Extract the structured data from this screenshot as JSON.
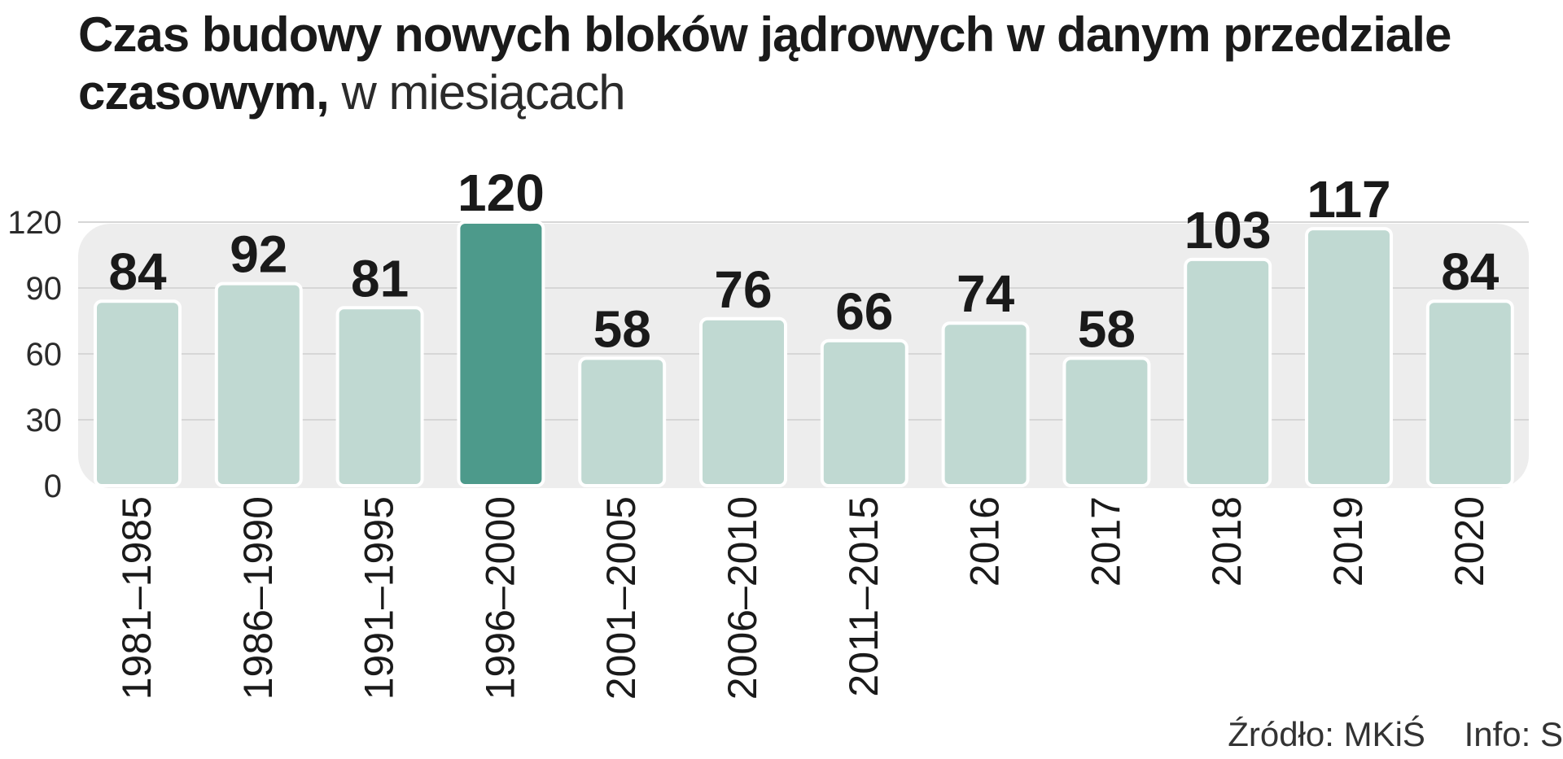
{
  "title": {
    "line1": "Czas budowy nowych bloków jądrowych w danym przedziale",
    "line2_bold": "czasowym,",
    "line2_light": "w miesiącach"
  },
  "footer": {
    "source": "Źródło: MKiŚ",
    "info": "Info: S"
  },
  "colors": {
    "bar": "#c0d9d2",
    "highlight": "#4d9a8b",
    "plot_bg": "#ededed",
    "text": "#1a1a1a"
  },
  "chart_data": {
    "type": "bar",
    "categories": [
      "1981–1985",
      "1986–1990",
      "1991–1995",
      "1996–2000",
      "2001–2005",
      "2006–2010",
      "2011–2015",
      "2016",
      "2017",
      "2018",
      "2019",
      "2020"
    ],
    "values": [
      84,
      92,
      81,
      120,
      58,
      76,
      66,
      74,
      58,
      103,
      117,
      84
    ],
    "value_labels": [
      "84",
      "92",
      "81",
      "120",
      "58",
      "76",
      "66",
      "74",
      "58",
      "103",
      "117",
      "84"
    ],
    "highlight_index": 3,
    "yticks": [
      0,
      30,
      60,
      90,
      120
    ],
    "ytick_labels": [
      "0",
      "30",
      "60",
      "90",
      "120"
    ],
    "ylim": [
      0,
      120
    ],
    "grid": true,
    "legend": "none"
  }
}
